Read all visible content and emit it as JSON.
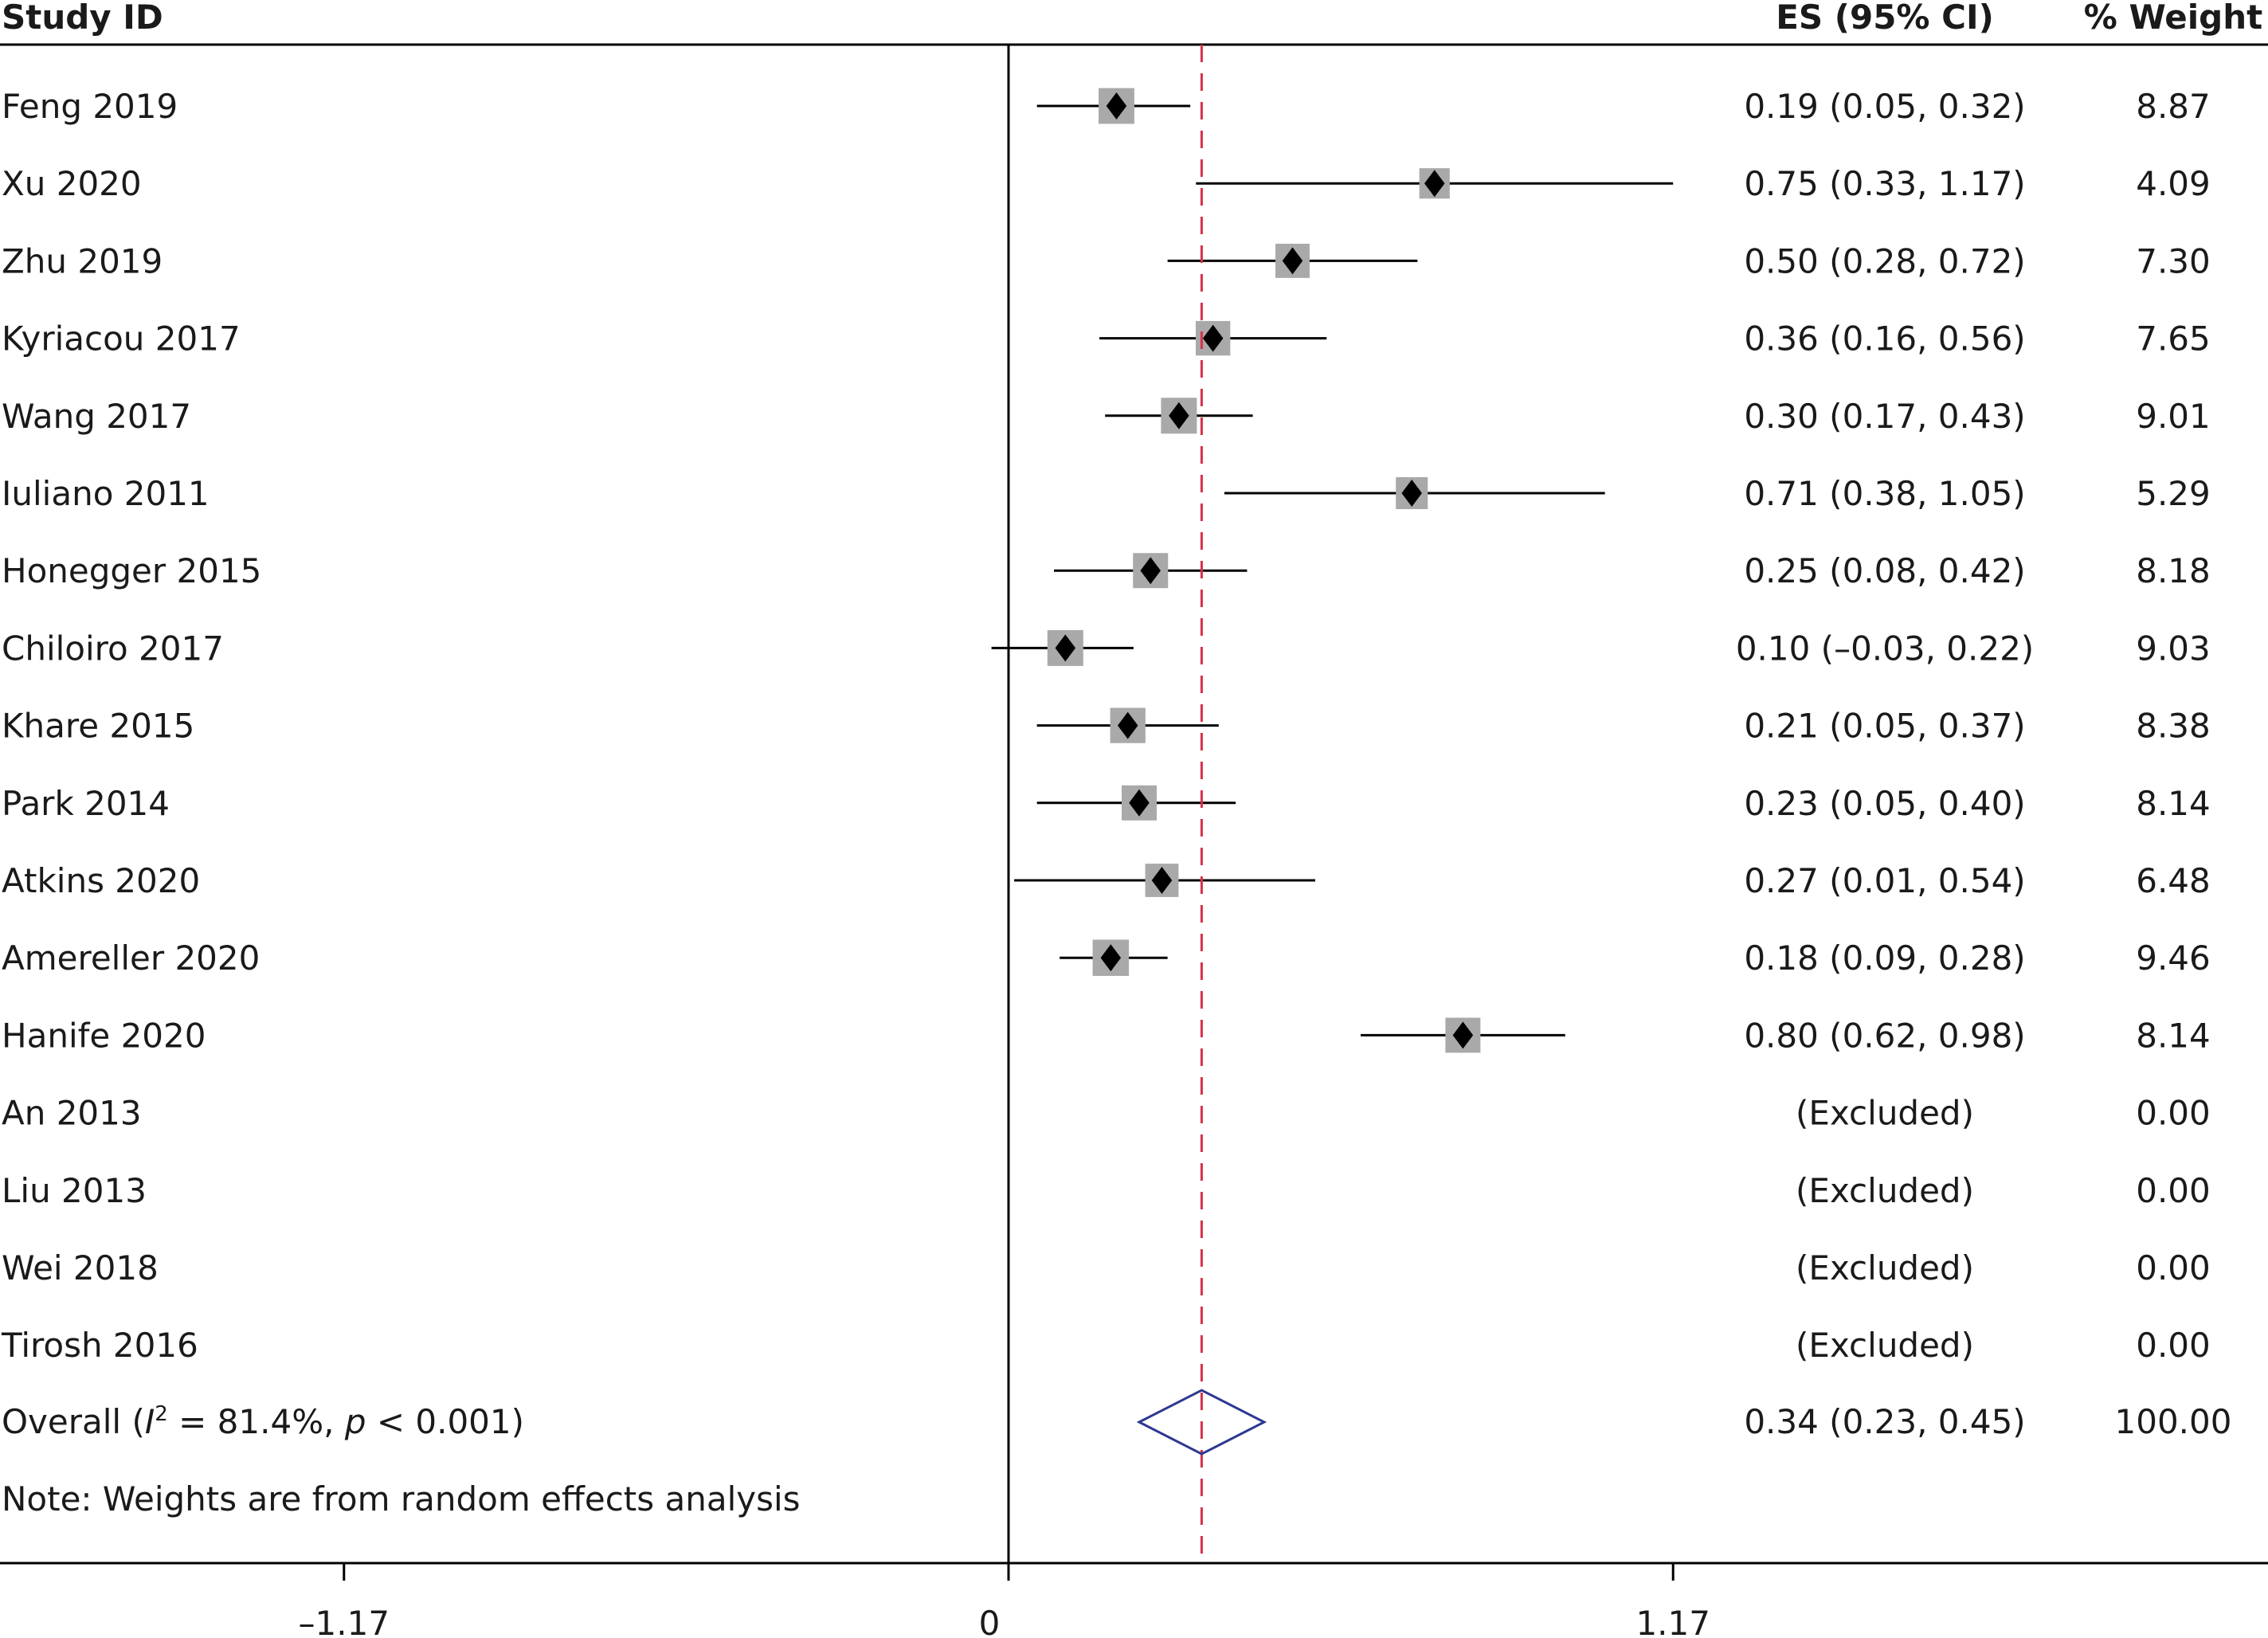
{
  "chart_data": {
    "type": "forest",
    "headers": {
      "study": "Study ID",
      "es": "ES (95% CI)",
      "weight": "% Weight"
    },
    "studies": [
      {
        "label": "Feng 2019",
        "es": 0.19,
        "lo": 0.05,
        "hi": 0.32,
        "ci_text": "0.19 (0.05, 0.32)",
        "weight": 8.87,
        "weight_text": "8.87"
      },
      {
        "label": "Xu 2020",
        "es": 0.75,
        "lo": 0.33,
        "hi": 1.17,
        "ci_text": "0.75 (0.33, 1.17)",
        "weight": 4.09,
        "weight_text": "4.09"
      },
      {
        "label": "Zhu 2019",
        "es": 0.5,
        "lo": 0.28,
        "hi": 0.72,
        "ci_text": "0.50 (0.28, 0.72)",
        "weight": 7.3,
        "weight_text": "7.30"
      },
      {
        "label": "Kyriacou 2017",
        "es": 0.36,
        "lo": 0.16,
        "hi": 0.56,
        "ci_text": "0.36 (0.16, 0.56)",
        "weight": 7.65,
        "weight_text": "7.65"
      },
      {
        "label": "Wang 2017",
        "es": 0.3,
        "lo": 0.17,
        "hi": 0.43,
        "ci_text": "0.30 (0.17, 0.43)",
        "weight": 9.01,
        "weight_text": "9.01"
      },
      {
        "label": "Iuliano 2011",
        "es": 0.71,
        "lo": 0.38,
        "hi": 1.05,
        "ci_text": "0.71 (0.38, 1.05)",
        "weight": 5.29,
        "weight_text": "5.29"
      },
      {
        "label": "Honegger 2015",
        "es": 0.25,
        "lo": 0.08,
        "hi": 0.42,
        "ci_text": "0.25 (0.08, 0.42)",
        "weight": 8.18,
        "weight_text": "8.18"
      },
      {
        "label": "Chiloiro 2017",
        "es": 0.1,
        "lo": -0.03,
        "hi": 0.22,
        "ci_text": "0.10 (–0.03, 0.22)",
        "weight": 9.03,
        "weight_text": "9.03"
      },
      {
        "label": "Khare 2015",
        "es": 0.21,
        "lo": 0.05,
        "hi": 0.37,
        "ci_text": "0.21 (0.05, 0.37)",
        "weight": 8.38,
        "weight_text": "8.38"
      },
      {
        "label": "Park 2014",
        "es": 0.23,
        "lo": 0.05,
        "hi": 0.4,
        "ci_text": "0.23 (0.05, 0.40)",
        "weight": 8.14,
        "weight_text": "8.14"
      },
      {
        "label": "Atkins 2020",
        "es": 0.27,
        "lo": 0.01,
        "hi": 0.54,
        "ci_text": "0.27 (0.01, 0.54)",
        "weight": 6.48,
        "weight_text": "6.48"
      },
      {
        "label": "Amereller 2020",
        "es": 0.18,
        "lo": 0.09,
        "hi": 0.28,
        "ci_text": "0.18 (0.09, 0.28)",
        "weight": 9.46,
        "weight_text": "9.46"
      },
      {
        "label": "Hanife 2020",
        "es": 0.8,
        "lo": 0.62,
        "hi": 0.98,
        "ci_text": "0.80 (0.62, 0.98)",
        "weight": 8.14,
        "weight_text": "8.14"
      },
      {
        "label": "An 2013",
        "es": null,
        "lo": null,
        "hi": null,
        "ci_text": "(Excluded)",
        "weight": 0.0,
        "weight_text": "0.00"
      },
      {
        "label": "Liu 2013",
        "es": null,
        "lo": null,
        "hi": null,
        "ci_text": "(Excluded)",
        "weight": 0.0,
        "weight_text": "0.00"
      },
      {
        "label": "Wei 2018",
        "es": null,
        "lo": null,
        "hi": null,
        "ci_text": "(Excluded)",
        "weight": 0.0,
        "weight_text": "0.00"
      },
      {
        "label": "Tirosh 2016",
        "es": null,
        "lo": null,
        "hi": null,
        "ci_text": "(Excluded)",
        "weight": 0.0,
        "weight_text": "0.00"
      }
    ],
    "overall": {
      "label_prefix": "Overall (",
      "label_i": "I",
      "label_sup": "2",
      "label_mid": " = 81.4%, ",
      "label_p": "p",
      "label_suffix": " < 0.001)",
      "es": 0.34,
      "lo": 0.23,
      "hi": 0.45,
      "ci_text": "0.34 (0.23, 0.45)",
      "weight_text": "100.00"
    },
    "note": "Note: Weights are from random effects analysis",
    "x_axis": {
      "xlim": [
        -1.2,
        2.6
      ],
      "ticks": [
        -1.17,
        0,
        1.17
      ],
      "tick_labels": [
        "–1.17",
        "0",
        "1.17"
      ]
    },
    "null_line": 0,
    "colors": {
      "box": "#a9a9a9",
      "marker": "#000000",
      "overall_diamond": "#2b3990",
      "overall_line": "#d9304a"
    }
  }
}
